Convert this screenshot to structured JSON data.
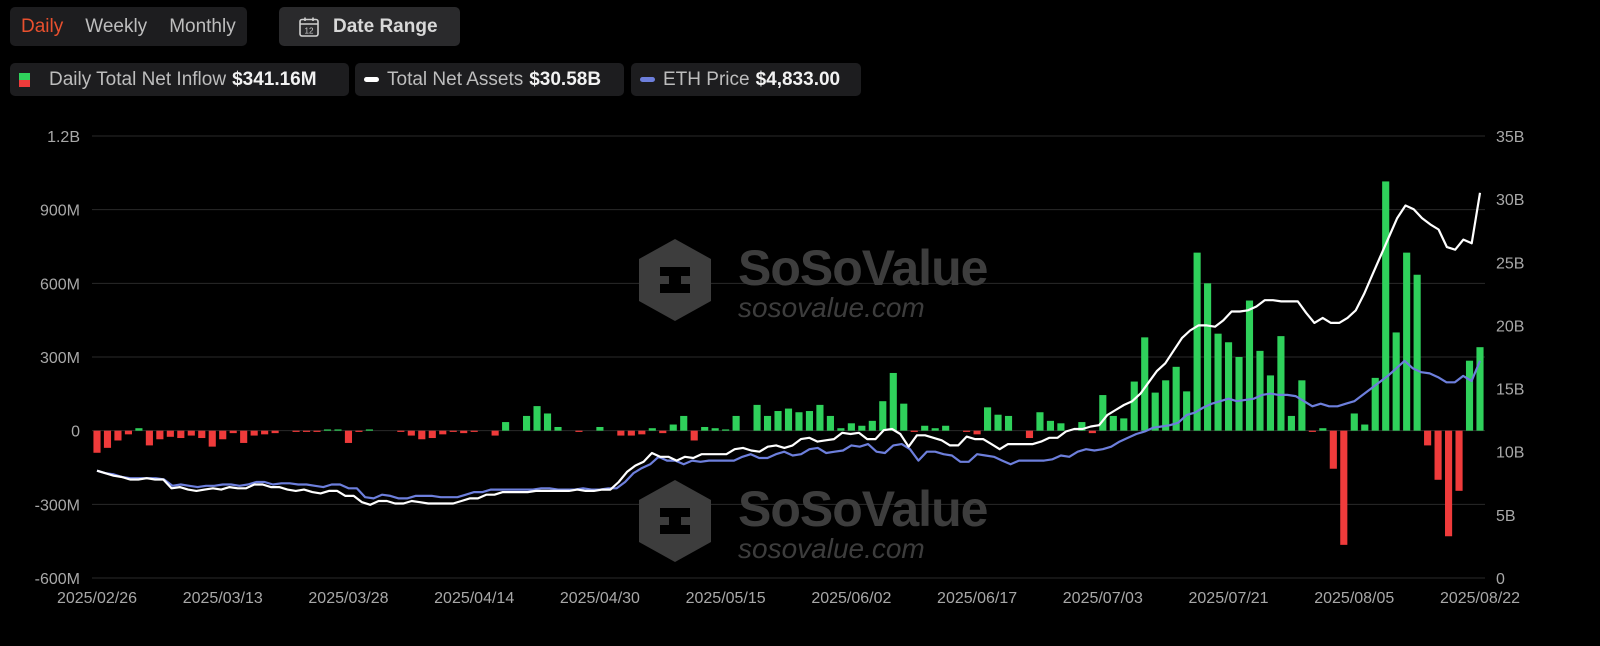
{
  "controls": {
    "tabs": [
      "Daily",
      "Weekly",
      "Monthly"
    ],
    "active_tab": "Daily",
    "date_range_label": "Date Range",
    "calendar_day": "12"
  },
  "legend": [
    {
      "name": "Daily Total Net Inflow",
      "value": "$341.16M",
      "colors": [
        "#2fd15b",
        "#ef3b3b"
      ]
    },
    {
      "name": "Total Net Assets",
      "value": "$30.58B",
      "color": "#ffffff"
    },
    {
      "name": "ETH Price",
      "value": "$4,833.00",
      "color": "#6d7fdc"
    }
  ],
  "watermark": {
    "brand": "SoSoValue",
    "url": "sosovalue.com"
  },
  "colors": {
    "positive": "#2fd15b",
    "negative": "#ef3b3b",
    "assets": "#ffffff",
    "eth": "#6d7fdc",
    "grid": "#2a2a2a"
  },
  "chart_data": {
    "type": "bar",
    "left_axis": {
      "ticks": [
        "1.2B",
        "900M",
        "600M",
        "300M",
        "0",
        "-300M",
        "-600M"
      ],
      "range": [
        -600,
        1200
      ],
      "unit": "M"
    },
    "right_axis": {
      "ticks": [
        "35B",
        "30B",
        "25B",
        "20B",
        "15B",
        "10B",
        "5B",
        "0"
      ],
      "range": [
        0,
        35
      ],
      "unit": "B"
    },
    "x_ticks": [
      "2025/02/26",
      "2025/03/13",
      "2025/03/28",
      "2025/04/14",
      "2025/04/30",
      "2025/05/15",
      "2025/06/02",
      "2025/06/17",
      "2025/07/03",
      "2025/07/21",
      "2025/08/05",
      "2025/08/22"
    ],
    "grid": true,
    "series": [
      {
        "name": "Daily Total Net Inflow",
        "type": "bar",
        "axis": "left",
        "values": [
          -90,
          -70,
          -40,
          -15,
          10,
          -60,
          -35,
          -25,
          -30,
          -20,
          -30,
          -65,
          -35,
          -10,
          -50,
          -20,
          -15,
          -10,
          0,
          -5,
          -5,
          -5,
          5,
          5,
          -50,
          -5,
          5,
          0,
          0,
          -5,
          -20,
          -35,
          -30,
          -15,
          -5,
          -10,
          -5,
          0,
          -20,
          35,
          0,
          60,
          100,
          70,
          15,
          0,
          -5,
          0,
          15,
          0,
          -20,
          -20,
          -15,
          10,
          -10,
          25,
          60,
          -40,
          15,
          10,
          5,
          60,
          0,
          105,
          60,
          80,
          90,
          75,
          80,
          105,
          60,
          10,
          30,
          20,
          40,
          120,
          235,
          110,
          -5,
          20,
          10,
          20,
          0,
          -5,
          -15,
          95,
          65,
          60,
          0,
          -30,
          75,
          40,
          30,
          0,
          35,
          -10,
          145,
          60,
          50,
          200,
          380,
          155,
          205,
          260,
          160,
          725,
          600,
          395,
          360,
          300,
          530,
          325,
          225,
          385,
          60,
          205,
          -5,
          10,
          -155,
          -465,
          70,
          25,
          215,
          1015,
          400,
          725,
          635,
          -60,
          -200,
          -430,
          -245,
          285,
          340
        ]
      },
      {
        "name": "Total Net Assets",
        "type": "line",
        "axis": "right",
        "values": [
          8.5,
          8.3,
          8.1,
          8.0,
          7.8,
          7.8,
          7.9,
          7.8,
          7.8,
          7.1,
          7.2,
          7.0,
          6.9,
          7.0,
          7.1,
          7.0,
          7.2,
          7.1,
          7.1,
          7.4,
          7.4,
          7.2,
          7.2,
          7.0,
          6.9,
          7.0,
          6.8,
          6.7,
          6.9,
          6.9,
          6.5,
          6.5,
          6.0,
          5.8,
          6.1,
          6.1,
          5.9,
          5.9,
          6.1,
          6.0,
          5.9,
          5.9,
          5.9,
          5.9,
          6.1,
          6.3,
          6.3,
          6.6,
          6.6,
          6.8,
          6.8,
          6.8,
          6.8,
          6.9,
          6.9,
          6.9,
          6.9,
          6.9,
          7.0,
          6.9,
          6.9,
          7.0,
          7.0,
          7.6,
          8.4,
          8.9,
          9.2,
          9.9,
          9.6,
          9.6,
          9.3,
          9.6,
          9.5,
          9.8,
          9.8,
          9.8,
          9.8,
          10.2,
          10.3,
          10.1,
          10.0,
          10.4,
          10.5,
          10.3,
          10.5,
          11.0,
          11.1,
          10.8,
          10.9,
          11.0,
          11.5,
          11.4,
          11.5,
          11.0,
          11.0,
          11.7,
          11.8,
          11.4,
          10.4,
          11.3,
          11.3,
          11.1,
          10.9,
          10.5,
          10.5,
          11.2,
          11.0,
          11.0,
          10.6,
          10.2,
          10.6,
          10.6,
          10.6,
          10.6,
          10.8,
          11.1,
          11.1,
          11.6,
          11.8,
          11.8,
          12.0,
          12.1,
          12.9,
          13.3,
          13.7,
          14.0,
          14.6,
          15.5,
          16.4,
          17.0,
          18.0,
          19.0,
          19.6,
          20.0,
          20.0,
          19.9,
          20.4,
          21.1,
          21.1,
          21.2,
          21.5,
          22.0,
          22.0,
          21.9,
          21.9,
          21.9,
          21.0,
          20.2,
          20.6,
          20.2,
          20.2,
          20.6,
          21.2,
          22.5,
          24.0,
          25.5,
          27.0,
          28.5,
          29.5,
          29.2,
          28.5,
          28.0,
          27.6,
          26.2,
          26.0,
          26.8,
          26.5,
          30.5
        ]
      },
      {
        "name": "ETH Price",
        "type": "line",
        "axis": "right",
        "values": [
          8.5,
          8.3,
          8.2,
          8.0,
          7.9,
          7.9,
          7.9,
          7.9,
          7.8,
          7.3,
          7.4,
          7.3,
          7.2,
          7.3,
          7.3,
          7.4,
          7.4,
          7.3,
          7.4,
          7.6,
          7.6,
          7.4,
          7.5,
          7.5,
          7.4,
          7.4,
          7.3,
          7.2,
          7.4,
          7.4,
          7.1,
          7.1,
          6.4,
          6.3,
          6.6,
          6.5,
          6.3,
          6.3,
          6.5,
          6.5,
          6.5,
          6.4,
          6.4,
          6.4,
          6.6,
          6.8,
          6.8,
          7.0,
          7.0,
          7.0,
          7.0,
          7.0,
          7.0,
          7.1,
          7.1,
          7.0,
          7.0,
          7.0,
          7.1,
          7.0,
          7.0,
          7.1,
          7.1,
          7.6,
          8.3,
          8.7,
          9.0,
          9.6,
          9.3,
          9.3,
          9.0,
          9.3,
          9.2,
          9.3,
          9.3,
          9.3,
          9.3,
          9.6,
          9.8,
          9.5,
          9.5,
          9.8,
          10.0,
          9.7,
          9.8,
          10.2,
          10.3,
          9.9,
          10.0,
          10.1,
          10.5,
          10.4,
          10.6,
          10.0,
          9.9,
          10.5,
          10.6,
          10.2,
          9.3,
          10.0,
          10.0,
          9.8,
          9.7,
          9.2,
          9.2,
          9.8,
          9.7,
          9.6,
          9.3,
          9.0,
          9.3,
          9.3,
          9.3,
          9.3,
          9.4,
          9.7,
          9.6,
          10.0,
          10.2,
          10.1,
          10.2,
          10.4,
          10.8,
          11.1,
          11.4,
          11.6,
          11.9,
          12.0,
          12.1,
          12.3,
          12.9,
          13.1,
          13.5,
          13.8,
          14.0,
          14.2,
          14.0,
          14.1,
          14.2,
          14.5,
          14.6,
          14.5,
          14.5,
          14.4,
          14.0,
          13.6,
          13.8,
          13.6,
          13.6,
          13.8,
          14.0,
          14.5,
          15.0,
          15.5,
          16.0,
          16.6,
          17.2,
          16.6,
          16.3,
          16.2,
          15.9,
          15.5,
          15.5,
          16.0,
          15.6,
          17.2
        ]
      }
    ]
  }
}
